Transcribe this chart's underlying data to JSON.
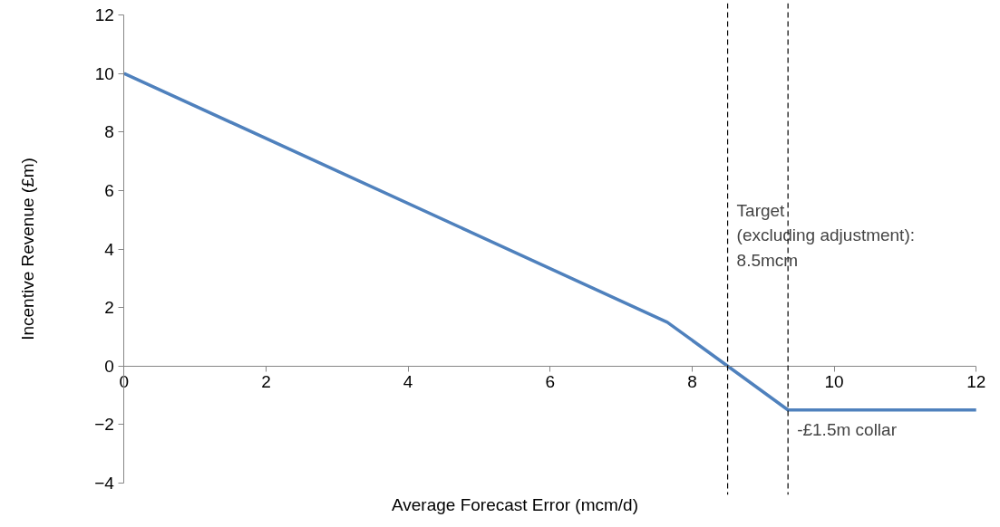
{
  "chart_data": {
    "type": "line",
    "xlabel": "Average Forecast Error (mcm/d)",
    "ylabel": "Incentive Revenue (£m)",
    "x": [
      0,
      7.65,
      8.5,
      9.35,
      12
    ],
    "series": [
      {
        "color": "#4f81bd",
        "values": [
          10,
          1.5,
          0,
          -1.5,
          -1.5
        ]
      }
    ],
    "xlim": [
      0,
      12
    ],
    "xticks": [
      0,
      2,
      4,
      6,
      8,
      10,
      12
    ],
    "ylim": [
      -4,
      12
    ],
    "yticks": [
      -4,
      -2,
      0,
      2,
      4,
      6,
      8,
      10,
      12
    ],
    "grid": false,
    "marker": "none",
    "line_style": "solid",
    "ref_lines": [
      {
        "axis": "x",
        "value": 8.5,
        "label": "Target\n(excluding adjustment):\n8.5mcm",
        "color": "#000000",
        "line_style": "dashed"
      },
      {
        "axis": "x",
        "value": 9.35,
        "label": "-£1.5m collar",
        "color": "#000000",
        "line_style": "dashed"
      }
    ]
  }
}
